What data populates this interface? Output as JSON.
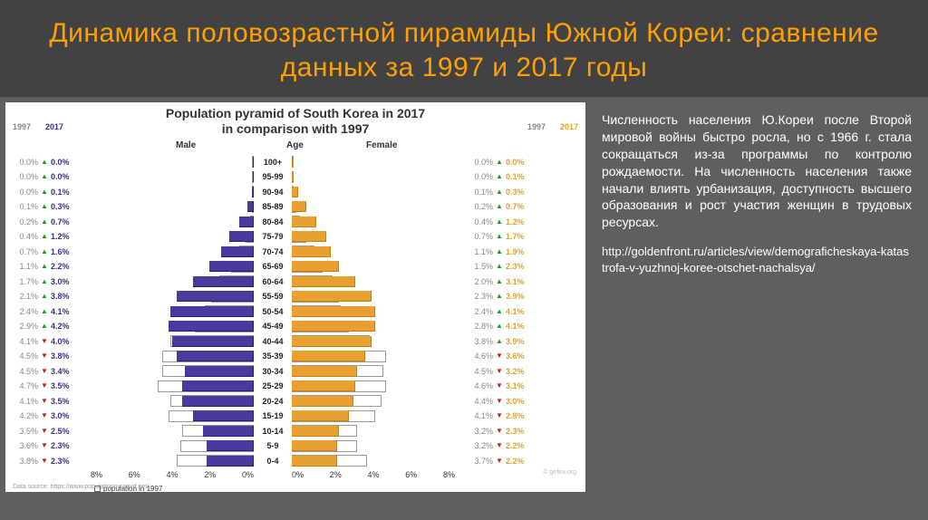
{
  "header": {
    "title": "Динамика половозрастной пирамиды Южной Кореи: сравнение данных за 1997 и 2017 годы",
    "title_color": "#ffa000",
    "bg": "#424242"
  },
  "chart": {
    "type": "population-pyramid",
    "title_line1": "Population pyramid of South Korea in 2017",
    "title_line2": "in comparison with 1997",
    "label_male": "Male",
    "label_age": "Age",
    "label_female": "Female",
    "year_a": "1997",
    "year_b": "2017",
    "bg": "#ffffff",
    "male_color": "#4a3a9e",
    "female_color": "#e8a030",
    "outline_color": "#999999",
    "x_max_pct": 8,
    "x_ticks": [
      "8%",
      "6%",
      "4%",
      "2%",
      "0%"
    ],
    "x_ticks_right": [
      "0%",
      "2%",
      "4%",
      "6%",
      "8%"
    ],
    "legend_1997": "population in 1997",
    "source": "Data source: https://www.populationpyramid.net/",
    "watermark": "© gefira.org",
    "rows": [
      {
        "age": "100+",
        "m97": 0.0,
        "m17": 0.0,
        "md": "up",
        "f97": 0.0,
        "f17": 0.0,
        "fd": "up"
      },
      {
        "age": "95-99",
        "m97": 0.0,
        "m17": 0.0,
        "md": "up",
        "f97": 0.0,
        "f17": 0.1,
        "fd": "up"
      },
      {
        "age": "90-94",
        "m97": 0.0,
        "m17": 0.1,
        "md": "up",
        "f97": 0.1,
        "f17": 0.3,
        "fd": "up"
      },
      {
        "age": "85-89",
        "m97": 0.1,
        "m17": 0.3,
        "md": "up",
        "f97": 0.2,
        "f17": 0.7,
        "fd": "up"
      },
      {
        "age": "80-84",
        "m97": 0.2,
        "m17": 0.7,
        "md": "up",
        "f97": 0.4,
        "f17": 1.2,
        "fd": "up"
      },
      {
        "age": "75-79",
        "m97": 0.4,
        "m17": 1.2,
        "md": "up",
        "f97": 0.7,
        "f17": 1.7,
        "fd": "up"
      },
      {
        "age": "70-74",
        "m97": 0.7,
        "m17": 1.6,
        "md": "up",
        "f97": 1.1,
        "f17": 1.9,
        "fd": "up"
      },
      {
        "age": "65-69",
        "m97": 1.1,
        "m17": 2.2,
        "md": "up",
        "f97": 1.5,
        "f17": 2.3,
        "fd": "up"
      },
      {
        "age": "60-64",
        "m97": 1.7,
        "m17": 3.0,
        "md": "up",
        "f97": 2.0,
        "f17": 3.1,
        "fd": "up"
      },
      {
        "age": "55-59",
        "m97": 2.1,
        "m17": 3.8,
        "md": "up",
        "f97": 2.3,
        "f17": 3.9,
        "fd": "up"
      },
      {
        "age": "50-54",
        "m97": 2.4,
        "m17": 4.1,
        "md": "up",
        "f97": 2.4,
        "f17": 4.1,
        "fd": "up"
      },
      {
        "age": "45-49",
        "m97": 2.9,
        "m17": 4.2,
        "md": "up",
        "f97": 2.8,
        "f17": 4.1,
        "fd": "up"
      },
      {
        "age": "40-44",
        "m97": 4.1,
        "m17": 4.0,
        "md": "down",
        "f97": 3.8,
        "f17": 3.9,
        "fd": "up"
      },
      {
        "age": "35-39",
        "m97": 4.5,
        "m17": 3.8,
        "md": "down",
        "f97": 4.6,
        "f17": 3.6,
        "fd": "down"
      },
      {
        "age": "30-34",
        "m97": 4.5,
        "m17": 3.4,
        "md": "down",
        "f97": 4.5,
        "f17": 3.2,
        "fd": "down"
      },
      {
        "age": "25-29",
        "m97": 4.7,
        "m17": 3.5,
        "md": "down",
        "f97": 4.6,
        "f17": 3.1,
        "fd": "down"
      },
      {
        "age": "20-24",
        "m97": 4.1,
        "m17": 3.5,
        "md": "down",
        "f97": 4.4,
        "f17": 3.0,
        "fd": "down"
      },
      {
        "age": "15-19",
        "m97": 4.2,
        "m17": 3.0,
        "md": "down",
        "f97": 4.1,
        "f17": 2.8,
        "fd": "down"
      },
      {
        "age": "10-14",
        "m97": 3.5,
        "m17": 2.5,
        "md": "down",
        "f97": 3.2,
        "f17": 2.3,
        "fd": "down"
      },
      {
        "age": "5-9",
        "m97": 3.6,
        "m17": 2.3,
        "md": "down",
        "f97": 3.2,
        "f17": 2.2,
        "fd": "down"
      },
      {
        "age": "0-4",
        "m97": 3.8,
        "m17": 2.3,
        "md": "down",
        "f97": 3.7,
        "f17": 2.2,
        "fd": "down"
      }
    ]
  },
  "text": {
    "body": "Численность населения Ю.Кореи после Второй мировой войны быстро росла, но с 1966 г. стала сокращаться из-за программы по контролю рождаемости. На численность населения также начали влиять урбанизация, доступность высшего образования и рост участия женщин в трудовых ресурсах.",
    "url": "http://goldenfront.ru/articles/view/demograficheskaya-katastrofa-v-yuzhnoj-koree-otschet-nachalsya/",
    "color": "#ffffff",
    "fontsize": 14
  }
}
